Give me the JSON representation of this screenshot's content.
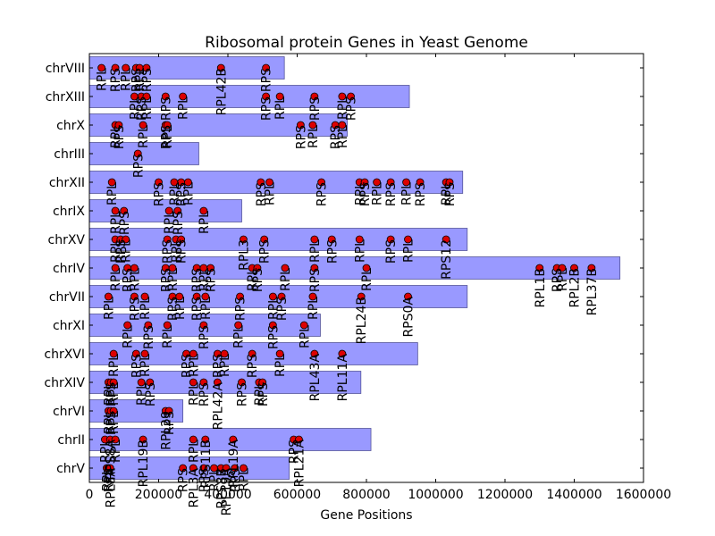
{
  "chart_data": {
    "type": "scatter",
    "title": "Ribosomal protein Genes in Yeast Genome",
    "xlabel": "Gene Positions",
    "ylabel": "",
    "xlim": [
      0,
      1600000
    ],
    "xticks": [
      0,
      200000,
      400000,
      600000,
      800000,
      1000000,
      1200000,
      1400000,
      1600000
    ],
    "xtick_labels": [
      "0",
      "200000",
      "400000",
      "600000",
      "800000",
      "1000000",
      "1200000",
      "1400000",
      "1600000"
    ],
    "bar_color": "#9999ff",
    "point_color": "#dd0000",
    "chromosomes": [
      {
        "name": "chrV",
        "length": 577000,
        "genes": [
          {
            "x": 50000,
            "label": "RPL"
          },
          {
            "x": 55000,
            "label": "RPS"
          },
          {
            "x": 60000,
            "label": "RPL8A"
          },
          {
            "x": 270000,
            "label": "RPS"
          },
          {
            "x": 300000,
            "label": "RPL3A"
          },
          {
            "x": 330000,
            "label": "RPS"
          },
          {
            "x": 360000,
            "label": "RPL"
          },
          {
            "x": 380000,
            "label": "RPS8B"
          },
          {
            "x": 395000,
            "label": "RPL19A"
          },
          {
            "x": 420000,
            "label": "RPS"
          },
          {
            "x": 445000,
            "label": "RPL"
          }
        ]
      },
      {
        "name": "chrII",
        "length": 813000,
        "genes": [
          {
            "x": 45000,
            "label": "RPL"
          },
          {
            "x": 60000,
            "label": "RPS8A"
          },
          {
            "x": 75000,
            "label": "RPL"
          },
          {
            "x": 155000,
            "label": "RPL19B"
          },
          {
            "x": 300000,
            "label": "RPL"
          },
          {
            "x": 335000,
            "label": "RPS11B"
          },
          {
            "x": 415000,
            "label": "RPL19A"
          },
          {
            "x": 590000,
            "label": "RPS"
          },
          {
            "x": 605000,
            "label": "RPL21A"
          }
        ]
      },
      {
        "name": "chrVI",
        "length": 270000,
        "genes": [
          {
            "x": 55000,
            "label": "RPL"
          },
          {
            "x": 62000,
            "label": "RPS"
          },
          {
            "x": 70000,
            "label": "RPL"
          },
          {
            "x": 220000,
            "label": "RPL29"
          },
          {
            "x": 230000,
            "label": "RPS"
          }
        ]
      },
      {
        "name": "chrXIV",
        "length": 784000,
        "genes": [
          {
            "x": 55000,
            "label": "RPL"
          },
          {
            "x": 62000,
            "label": "RPS"
          },
          {
            "x": 70000,
            "label": "RPL"
          },
          {
            "x": 150000,
            "label": "RPL"
          },
          {
            "x": 175000,
            "label": "RPS"
          },
          {
            "x": 300000,
            "label": "RPL"
          },
          {
            "x": 330000,
            "label": "RPS"
          },
          {
            "x": 370000,
            "label": "RPL42A"
          },
          {
            "x": 440000,
            "label": "RPS"
          },
          {
            "x": 490000,
            "label": "RPL"
          },
          {
            "x": 500000,
            "label": "RPS"
          }
        ]
      },
      {
        "name": "chrXVI",
        "length": 948000,
        "genes": [
          {
            "x": 70000,
            "label": "RPL"
          },
          {
            "x": 135000,
            "label": "RPS"
          },
          {
            "x": 160000,
            "label": "RPL"
          },
          {
            "x": 280000,
            "label": "RPS"
          },
          {
            "x": 300000,
            "label": "RPL"
          },
          {
            "x": 370000,
            "label": "RPS"
          },
          {
            "x": 390000,
            "label": "RPL"
          },
          {
            "x": 470000,
            "label": "RPS"
          },
          {
            "x": 550000,
            "label": "RPL"
          },
          {
            "x": 650000,
            "label": "RPL43A"
          },
          {
            "x": 730000,
            "label": "RPL11A"
          }
        ]
      },
      {
        "name": "chrXI",
        "length": 667000,
        "genes": [
          {
            "x": 110000,
            "label": "RPL"
          },
          {
            "x": 170000,
            "label": "RPS"
          },
          {
            "x": 225000,
            "label": "RPL"
          },
          {
            "x": 330000,
            "label": "RPS"
          },
          {
            "x": 430000,
            "label": "RPL"
          },
          {
            "x": 530000,
            "label": "RPS"
          },
          {
            "x": 620000,
            "label": "RPL"
          }
        ]
      },
      {
        "name": "chrVII",
        "length": 1091000,
        "genes": [
          {
            "x": 55000,
            "label": "RPL"
          },
          {
            "x": 130000,
            "label": "RPS"
          },
          {
            "x": 160000,
            "label": "RPL"
          },
          {
            "x": 240000,
            "label": "RPS"
          },
          {
            "x": 260000,
            "label": "RPL"
          },
          {
            "x": 310000,
            "label": "RPS"
          },
          {
            "x": 335000,
            "label": "RPL"
          },
          {
            "x": 435000,
            "label": "RPS"
          },
          {
            "x": 530000,
            "label": "RPL"
          },
          {
            "x": 555000,
            "label": "RPS"
          },
          {
            "x": 645000,
            "label": "RPL"
          },
          {
            "x": 785000,
            "label": "RPL24B"
          },
          {
            "x": 920000,
            "label": "RPS0A"
          }
        ]
      },
      {
        "name": "chrIV",
        "length": 1532000,
        "genes": [
          {
            "x": 75000,
            "label": "RPL"
          },
          {
            "x": 110000,
            "label": "RPS"
          },
          {
            "x": 130000,
            "label": "RPL"
          },
          {
            "x": 220000,
            "label": "RPS"
          },
          {
            "x": 240000,
            "label": "RPL"
          },
          {
            "x": 310000,
            "label": "RPS"
          },
          {
            "x": 330000,
            "label": "RPL"
          },
          {
            "x": 350000,
            "label": "RPS"
          },
          {
            "x": 470000,
            "label": "RPL"
          },
          {
            "x": 485000,
            "label": "RPS"
          },
          {
            "x": 565000,
            "label": "RPL"
          },
          {
            "x": 650000,
            "label": "RPS"
          },
          {
            "x": 800000,
            "label": "RPL"
          },
          {
            "x": 1300000,
            "label": "RPL1B"
          },
          {
            "x": 1350000,
            "label": "RPS"
          },
          {
            "x": 1365000,
            "label": "RPL"
          },
          {
            "x": 1400000,
            "label": "RPL2B"
          },
          {
            "x": 1450000,
            "label": "RPL37B"
          }
        ]
      },
      {
        "name": "chrXV",
        "length": 1091000,
        "genes": [
          {
            "x": 75000,
            "label": "RPL"
          },
          {
            "x": 90000,
            "label": "RPS"
          },
          {
            "x": 105000,
            "label": "RPL"
          },
          {
            "x": 225000,
            "label": "RPS"
          },
          {
            "x": 250000,
            "label": "RPL"
          },
          {
            "x": 265000,
            "label": "RPS"
          },
          {
            "x": 445000,
            "label": "RPL3"
          },
          {
            "x": 505000,
            "label": "RPS"
          },
          {
            "x": 650000,
            "label": "RPL"
          },
          {
            "x": 700000,
            "label": "RPS"
          },
          {
            "x": 780000,
            "label": "RPL"
          },
          {
            "x": 870000,
            "label": "RPS"
          },
          {
            "x": 920000,
            "label": "RPL"
          },
          {
            "x": 1030000,
            "label": "RPS12"
          }
        ]
      },
      {
        "name": "chrIX",
        "length": 440000,
        "genes": [
          {
            "x": 75000,
            "label": "RPL"
          },
          {
            "x": 100000,
            "label": "RPS"
          },
          {
            "x": 230000,
            "label": "RPL"
          },
          {
            "x": 255000,
            "label": "RPS"
          },
          {
            "x": 330000,
            "label": "RPL"
          }
        ]
      },
      {
        "name": "chrXII",
        "length": 1078000,
        "genes": [
          {
            "x": 65000,
            "label": "RPL"
          },
          {
            "x": 200000,
            "label": "RPS"
          },
          {
            "x": 245000,
            "label": "RPL"
          },
          {
            "x": 265000,
            "label": "RPS"
          },
          {
            "x": 285000,
            "label": "RPL"
          },
          {
            "x": 495000,
            "label": "RPS"
          },
          {
            "x": 520000,
            "label": "RPL"
          },
          {
            "x": 670000,
            "label": "RPS"
          },
          {
            "x": 780000,
            "label": "RPL"
          },
          {
            "x": 795000,
            "label": "RPS"
          },
          {
            "x": 830000,
            "label": "RPL"
          },
          {
            "x": 870000,
            "label": "RPS"
          },
          {
            "x": 915000,
            "label": "RPL"
          },
          {
            "x": 955000,
            "label": "RPS"
          },
          {
            "x": 1030000,
            "label": "RPL"
          },
          {
            "x": 1040000,
            "label": "RPS"
          }
        ]
      },
      {
        "name": "chrIII",
        "length": 316000,
        "genes": [
          {
            "x": 140000,
            "label": "RPS"
          }
        ]
      },
      {
        "name": "chrX",
        "length": 745000,
        "genes": [
          {
            "x": 75000,
            "label": "RPL"
          },
          {
            "x": 85000,
            "label": "RPS"
          },
          {
            "x": 155000,
            "label": "RPL"
          },
          {
            "x": 220000,
            "label": "RPS"
          },
          {
            "x": 225000,
            "label": "RPL"
          },
          {
            "x": 610000,
            "label": "RPS"
          },
          {
            "x": 645000,
            "label": "RPL"
          },
          {
            "x": 710000,
            "label": "RPS"
          },
          {
            "x": 730000,
            "label": "RPL"
          }
        ]
      },
      {
        "name": "chrXIII",
        "length": 924000,
        "genes": [
          {
            "x": 130000,
            "label": "RPL"
          },
          {
            "x": 150000,
            "label": "RPS"
          },
          {
            "x": 165000,
            "label": "RPL"
          },
          {
            "x": 220000,
            "label": "RPS"
          },
          {
            "x": 270000,
            "label": "RPL"
          },
          {
            "x": 510000,
            "label": "RPS"
          },
          {
            "x": 550000,
            "label": "RPL"
          },
          {
            "x": 650000,
            "label": "RPS"
          },
          {
            "x": 730000,
            "label": "RPL"
          },
          {
            "x": 755000,
            "label": "RPS"
          }
        ]
      },
      {
        "name": "chrVIII",
        "length": 563000,
        "genes": [
          {
            "x": 35000,
            "label": "RPL"
          },
          {
            "x": 75000,
            "label": "RPS"
          },
          {
            "x": 105000,
            "label": "RPL"
          },
          {
            "x": 135000,
            "label": "RPS"
          },
          {
            "x": 145000,
            "label": "RPL"
          },
          {
            "x": 165000,
            "label": "RPS"
          },
          {
            "x": 380000,
            "label": "RPL42B"
          },
          {
            "x": 510000,
            "label": "RPS"
          }
        ]
      }
    ]
  }
}
